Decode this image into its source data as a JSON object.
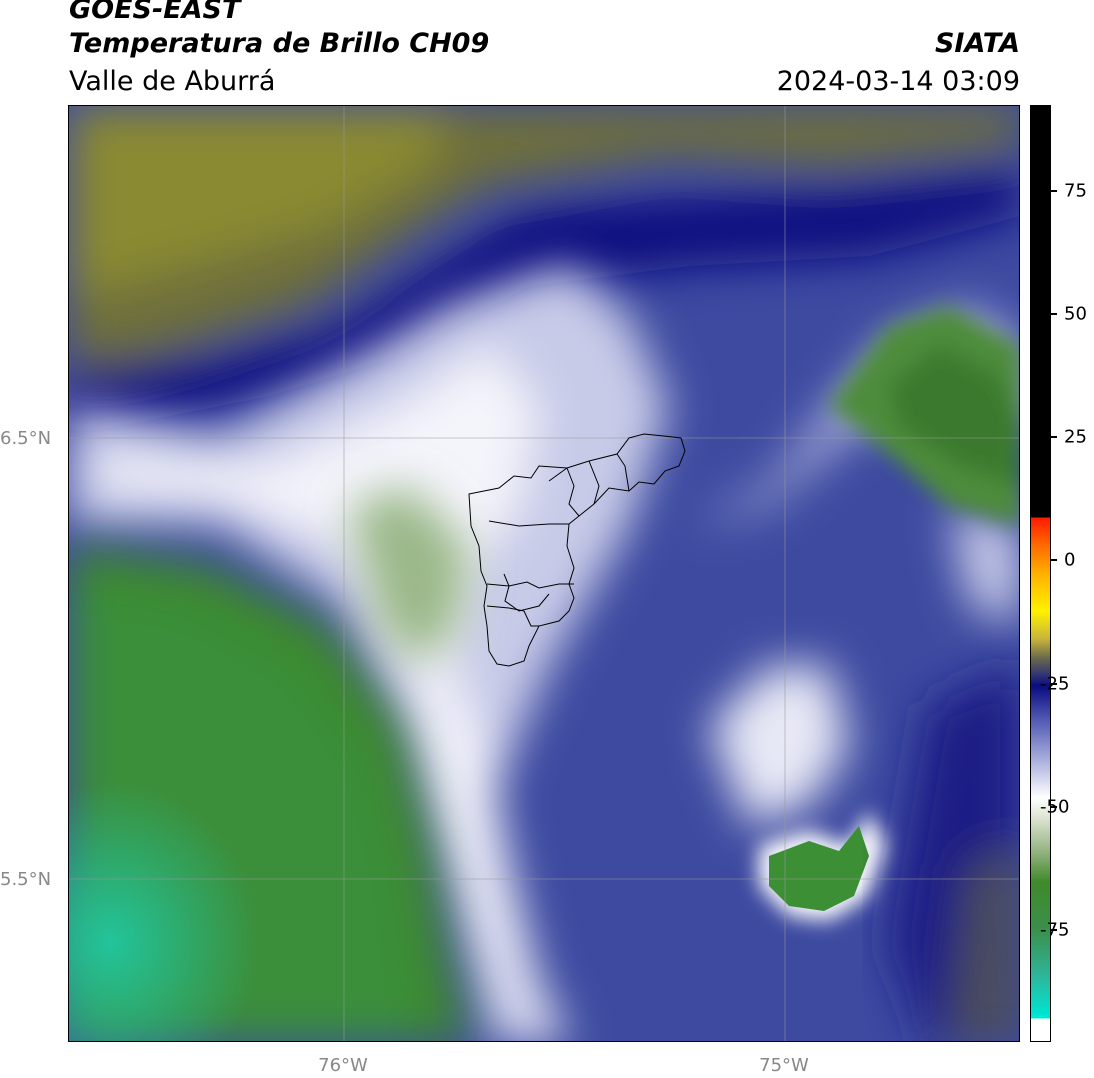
{
  "header": {
    "satellite": "GOES-EAST",
    "product": "Temperatura de Brillo CH09",
    "region": "Valle de Aburrá",
    "agency": "SIATA",
    "datetime": "2024-03-14 03:09"
  },
  "axes": {
    "lat_labels": [
      "6.5°N",
      "5.5°N"
    ],
    "lon_labels": [
      "76°W",
      "75°W"
    ]
  },
  "colorbar": {
    "ticks": [
      "75",
      "50",
      "25",
      "0",
      "-25",
      "-50",
      "-75"
    ]
  }
}
